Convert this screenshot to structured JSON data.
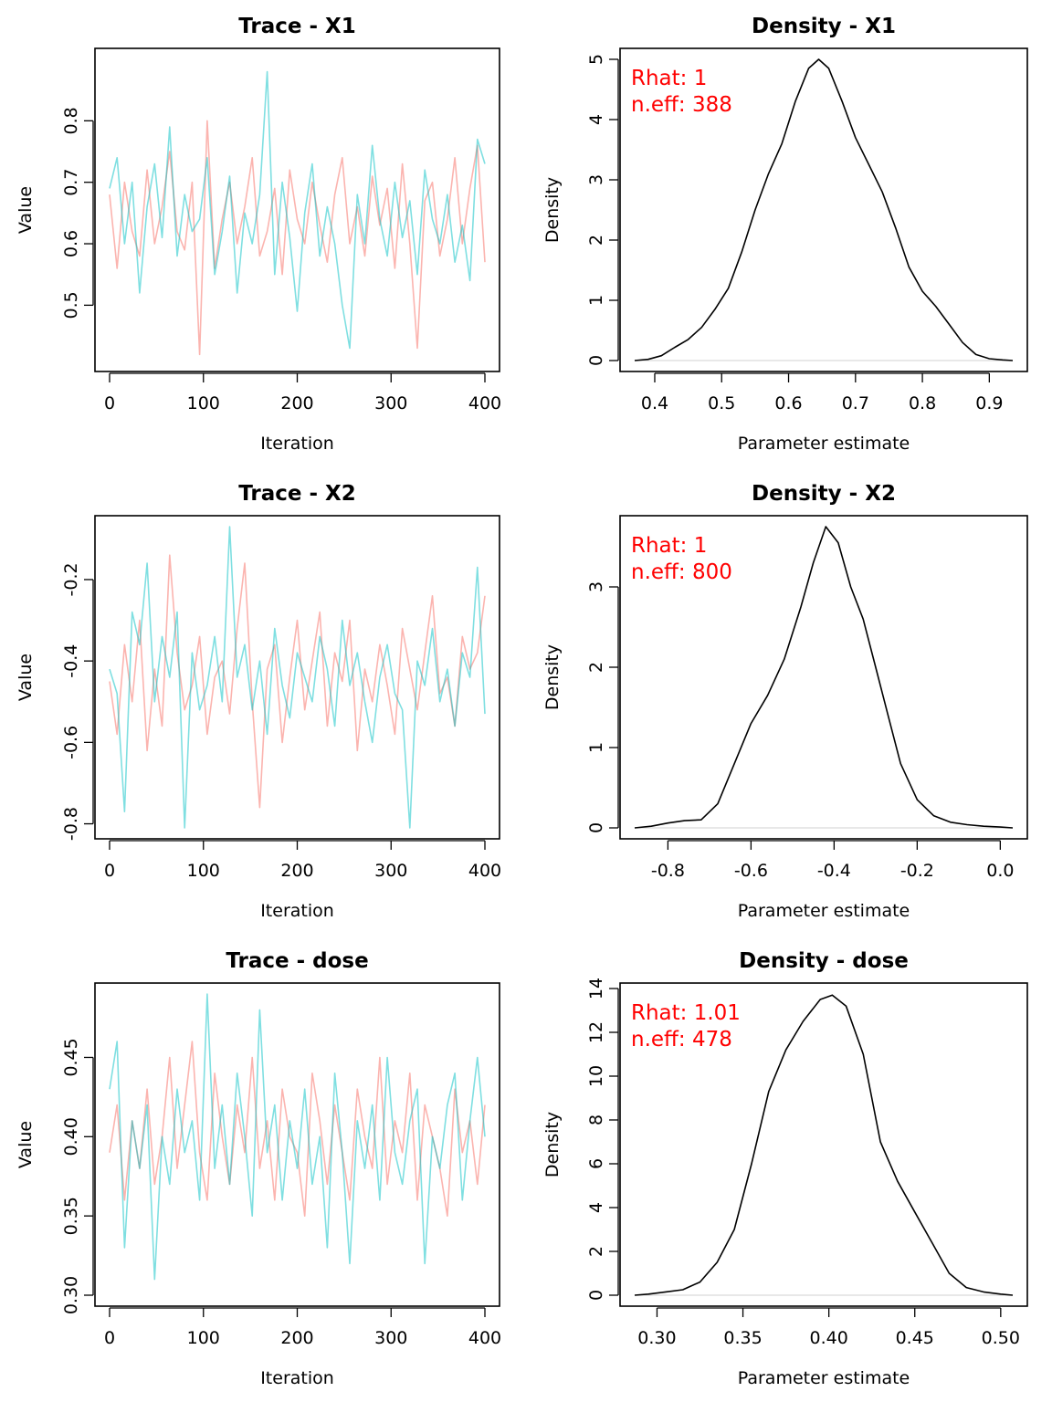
{
  "figure": {
    "panels": [
      {
        "trace_title": "Trace - X1",
        "density_title": "Density - X1",
        "rhat_text": "Rhat: 1",
        "neff_text": "n.eff: 388"
      },
      {
        "trace_title": "Trace - X2",
        "density_title": "Density - X2",
        "rhat_text": "Rhat: 1",
        "neff_text": "n.eff: 800"
      },
      {
        "trace_title": "Trace - dose",
        "density_title": "Density - dose",
        "rhat_text": "Rhat: 1.01",
        "neff_text": "n.eff: 478"
      }
    ]
  },
  "chart_data": [
    {
      "type": "line",
      "title": "Trace - X1",
      "xlabel": "Iteration",
      "ylabel": "Value",
      "xlim": [
        0,
        400
      ],
      "ylim": [
        0.41,
        0.9
      ],
      "xticks": [
        0,
        100,
        200,
        300,
        400
      ],
      "xtick_labels": [
        "0",
        "100",
        "200",
        "300",
        "400"
      ],
      "yticks": [
        0.5,
        0.6,
        0.7,
        0.8
      ],
      "ytick_labels": [
        "0.5",
        "0.6",
        "0.7",
        "0.8"
      ],
      "series_colors": [
        "#f8766d",
        "#00bfc4"
      ],
      "series": [
        {
          "x": [
            0,
            8,
            16,
            24,
            32,
            40,
            48,
            56,
            64,
            72,
            80,
            88,
            96,
            104,
            112,
            120,
            128,
            136,
            144,
            152,
            160,
            168,
            176,
            184,
            192,
            200,
            208,
            216,
            224,
            232,
            240,
            248,
            256,
            264,
            272,
            280,
            288,
            296,
            304,
            312,
            320,
            328,
            336,
            344,
            352,
            360,
            368,
            376,
            384,
            392,
            400
          ],
          "values": [
            0.68,
            0.56,
            0.7,
            0.62,
            0.58,
            0.72,
            0.6,
            0.66,
            0.75,
            0.62,
            0.59,
            0.7,
            0.42,
            0.8,
            0.56,
            0.64,
            0.7,
            0.6,
            0.66,
            0.74,
            0.58,
            0.62,
            0.69,
            0.55,
            0.72,
            0.64,
            0.6,
            0.7,
            0.63,
            0.57,
            0.68,
            0.74,
            0.6,
            0.66,
            0.58,
            0.71,
            0.63,
            0.69,
            0.56,
            0.73,
            0.6,
            0.43,
            0.67,
            0.7,
            0.58,
            0.64,
            0.74,
            0.6,
            0.69,
            0.76,
            0.57
          ]
        },
        {
          "x": [
            0,
            8,
            16,
            24,
            32,
            40,
            48,
            56,
            64,
            72,
            80,
            88,
            96,
            104,
            112,
            120,
            128,
            136,
            144,
            152,
            160,
            168,
            176,
            184,
            192,
            200,
            208,
            216,
            224,
            232,
            240,
            248,
            256,
            264,
            272,
            280,
            288,
            296,
            304,
            312,
            320,
            328,
            336,
            344,
            352,
            360,
            368,
            376,
            384,
            392,
            400
          ],
          "values": [
            0.69,
            0.74,
            0.6,
            0.7,
            0.52,
            0.66,
            0.73,
            0.61,
            0.79,
            0.58,
            0.68,
            0.62,
            0.64,
            0.74,
            0.55,
            0.62,
            0.71,
            0.52,
            0.65,
            0.6,
            0.68,
            0.88,
            0.55,
            0.7,
            0.61,
            0.49,
            0.65,
            0.73,
            0.58,
            0.66,
            0.6,
            0.5,
            0.43,
            0.68,
            0.6,
            0.76,
            0.64,
            0.58,
            0.7,
            0.61,
            0.67,
            0.55,
            0.72,
            0.64,
            0.6,
            0.68,
            0.57,
            0.63,
            0.54,
            0.77,
            0.73
          ]
        }
      ]
    },
    {
      "type": "line",
      "title": "Density - X1",
      "xlabel": "Parameter estimate",
      "ylabel": "Density",
      "xlim": [
        0.37,
        0.935
      ],
      "ylim": [
        0,
        5
      ],
      "xticks": [
        0.4,
        0.5,
        0.6,
        0.7,
        0.8,
        0.9
      ],
      "xtick_labels": [
        "0.4",
        "0.5",
        "0.6",
        "0.7",
        "0.8",
        "0.9"
      ],
      "yticks": [
        0,
        1,
        2,
        3,
        4,
        5
      ],
      "ytick_labels": [
        "0",
        "1",
        "2",
        "3",
        "4",
        "5"
      ],
      "series": [
        {
          "x": [
            0.37,
            0.39,
            0.41,
            0.43,
            0.45,
            0.47,
            0.49,
            0.51,
            0.53,
            0.55,
            0.57,
            0.59,
            0.61,
            0.63,
            0.645,
            0.66,
            0.68,
            0.7,
            0.72,
            0.74,
            0.76,
            0.78,
            0.8,
            0.82,
            0.84,
            0.86,
            0.88,
            0.9,
            0.92,
            0.935
          ],
          "values": [
            0.0,
            0.02,
            0.08,
            0.22,
            0.35,
            0.55,
            0.85,
            1.2,
            1.8,
            2.5,
            3.1,
            3.6,
            4.3,
            4.85,
            5.0,
            4.85,
            4.3,
            3.7,
            3.25,
            2.8,
            2.2,
            1.55,
            1.15,
            0.9,
            0.6,
            0.3,
            0.1,
            0.03,
            0.01,
            0.0
          ]
        }
      ]
    },
    {
      "type": "line",
      "title": "Trace - X2",
      "xlabel": "Iteration",
      "ylabel": "Value",
      "xlim": [
        0,
        400
      ],
      "ylim": [
        -0.81,
        -0.07
      ],
      "xticks": [
        0,
        100,
        200,
        300,
        400
      ],
      "xtick_labels": [
        "0",
        "100",
        "200",
        "300",
        "400"
      ],
      "yticks": [
        -0.8,
        -0.6,
        -0.4,
        -0.2
      ],
      "ytick_labels": [
        "-0.8",
        "-0.6",
        "-0.4",
        "-0.2"
      ],
      "series_colors": [
        "#f8766d",
        "#00bfc4"
      ],
      "series": [
        {
          "x": [
            0,
            8,
            16,
            24,
            32,
            40,
            48,
            56,
            64,
            72,
            80,
            88,
            96,
            104,
            112,
            120,
            128,
            136,
            144,
            152,
            160,
            168,
            176,
            184,
            192,
            200,
            208,
            216,
            224,
            232,
            240,
            248,
            256,
            264,
            272,
            280,
            288,
            296,
            304,
            312,
            320,
            328,
            336,
            344,
            352,
            360,
            368,
            376,
            384,
            392,
            400
          ],
          "values": [
            -0.45,
            -0.58,
            -0.36,
            -0.5,
            -0.3,
            -0.62,
            -0.42,
            -0.56,
            -0.14,
            -0.38,
            -0.52,
            -0.46,
            -0.34,
            -0.58,
            -0.44,
            -0.4,
            -0.53,
            -0.32,
            -0.16,
            -0.5,
            -0.76,
            -0.42,
            -0.36,
            -0.6,
            -0.44,
            -0.3,
            -0.52,
            -0.4,
            -0.28,
            -0.56,
            -0.38,
            -0.45,
            -0.3,
            -0.62,
            -0.42,
            -0.5,
            -0.36,
            -0.46,
            -0.58,
            -0.32,
            -0.42,
            -0.52,
            -0.38,
            -0.24,
            -0.48,
            -0.44,
            -0.56,
            -0.34,
            -0.42,
            -0.38,
            -0.24
          ]
        },
        {
          "x": [
            0,
            8,
            16,
            24,
            32,
            40,
            48,
            56,
            64,
            72,
            80,
            88,
            96,
            104,
            112,
            120,
            128,
            136,
            144,
            152,
            160,
            168,
            176,
            184,
            192,
            200,
            208,
            216,
            224,
            232,
            240,
            248,
            256,
            264,
            272,
            280,
            288,
            296,
            304,
            312,
            320,
            328,
            336,
            344,
            352,
            360,
            368,
            376,
            384,
            392,
            400
          ],
          "values": [
            -0.42,
            -0.48,
            -0.77,
            -0.28,
            -0.36,
            -0.16,
            -0.5,
            -0.34,
            -0.44,
            -0.28,
            -0.81,
            -0.38,
            -0.52,
            -0.46,
            -0.34,
            -0.5,
            -0.07,
            -0.44,
            -0.36,
            -0.52,
            -0.4,
            -0.58,
            -0.32,
            -0.46,
            -0.54,
            -0.38,
            -0.44,
            -0.5,
            -0.34,
            -0.42,
            -0.56,
            -0.3,
            -0.46,
            -0.38,
            -0.5,
            -0.6,
            -0.44,
            -0.36,
            -0.48,
            -0.52,
            -0.81,
            -0.4,
            -0.46,
            -0.32,
            -0.5,
            -0.42,
            -0.56,
            -0.38,
            -0.44,
            -0.17,
            -0.53
          ]
        }
      ]
    },
    {
      "type": "line",
      "title": "Density - X2",
      "xlabel": "Parameter estimate",
      "ylabel": "Density",
      "xlim": [
        -0.88,
        0.03
      ],
      "ylim": [
        0,
        3.75
      ],
      "xticks": [
        -0.8,
        -0.6,
        -0.4,
        -0.2,
        0.0
      ],
      "xtick_labels": [
        "-0.8",
        "-0.6",
        "-0.4",
        "-0.2",
        "0.0"
      ],
      "yticks": [
        0,
        1,
        2,
        3
      ],
      "ytick_labels": [
        "0",
        "1",
        "2",
        "3"
      ],
      "series": [
        {
          "x": [
            -0.88,
            -0.84,
            -0.8,
            -0.76,
            -0.72,
            -0.68,
            -0.64,
            -0.6,
            -0.56,
            -0.52,
            -0.48,
            -0.45,
            -0.42,
            -0.39,
            -0.36,
            -0.33,
            -0.3,
            -0.27,
            -0.24,
            -0.2,
            -0.16,
            -0.12,
            -0.08,
            -0.04,
            0.0,
            0.03
          ],
          "values": [
            0.0,
            0.02,
            0.06,
            0.09,
            0.1,
            0.3,
            0.8,
            1.3,
            1.65,
            2.1,
            2.75,
            3.3,
            3.75,
            3.55,
            3.0,
            2.6,
            2.0,
            1.4,
            0.8,
            0.35,
            0.15,
            0.07,
            0.04,
            0.02,
            0.01,
            0.0
          ]
        }
      ]
    },
    {
      "type": "line",
      "title": "Trace - dose",
      "xlabel": "Iteration",
      "ylabel": "Value",
      "xlim": [
        0,
        400
      ],
      "ylim": [
        0.3,
        0.49
      ],
      "xticks": [
        0,
        100,
        200,
        300,
        400
      ],
      "xtick_labels": [
        "0",
        "100",
        "200",
        "300",
        "400"
      ],
      "yticks": [
        0.3,
        0.35,
        0.4,
        0.45
      ],
      "ytick_labels": [
        "0.30",
        "0.35",
        "0.40",
        "0.45"
      ],
      "series_colors": [
        "#f8766d",
        "#00bfc4"
      ],
      "series": [
        {
          "x": [
            0,
            8,
            16,
            24,
            32,
            40,
            48,
            56,
            64,
            72,
            80,
            88,
            96,
            104,
            112,
            120,
            128,
            136,
            144,
            152,
            160,
            168,
            176,
            184,
            192,
            200,
            208,
            216,
            224,
            232,
            240,
            248,
            256,
            264,
            272,
            280,
            288,
            296,
            304,
            312,
            320,
            328,
            336,
            344,
            352,
            360,
            368,
            376,
            384,
            392,
            400
          ],
          "values": [
            0.39,
            0.42,
            0.36,
            0.41,
            0.38,
            0.43,
            0.37,
            0.4,
            0.45,
            0.38,
            0.42,
            0.46,
            0.39,
            0.36,
            0.44,
            0.4,
            0.37,
            0.42,
            0.39,
            0.45,
            0.38,
            0.41,
            0.36,
            0.43,
            0.4,
            0.39,
            0.35,
            0.44,
            0.41,
            0.37,
            0.42,
            0.39,
            0.36,
            0.43,
            0.4,
            0.38,
            0.45,
            0.37,
            0.41,
            0.39,
            0.44,
            0.36,
            0.42,
            0.4,
            0.38,
            0.35,
            0.43,
            0.39,
            0.41,
            0.37,
            0.42
          ]
        },
        {
          "x": [
            0,
            8,
            16,
            24,
            32,
            40,
            48,
            56,
            64,
            72,
            80,
            88,
            96,
            104,
            112,
            120,
            128,
            136,
            144,
            152,
            160,
            168,
            176,
            184,
            192,
            200,
            208,
            216,
            224,
            232,
            240,
            248,
            256,
            264,
            272,
            280,
            288,
            296,
            304,
            312,
            320,
            328,
            336,
            344,
            352,
            360,
            368,
            376,
            384,
            392,
            400
          ],
          "values": [
            0.43,
            0.46,
            0.33,
            0.41,
            0.38,
            0.42,
            0.31,
            0.4,
            0.37,
            0.43,
            0.39,
            0.41,
            0.36,
            0.49,
            0.38,
            0.42,
            0.37,
            0.44,
            0.4,
            0.35,
            0.48,
            0.39,
            0.42,
            0.36,
            0.41,
            0.38,
            0.43,
            0.37,
            0.4,
            0.33,
            0.44,
            0.39,
            0.32,
            0.41,
            0.38,
            0.42,
            0.36,
            0.45,
            0.39,
            0.37,
            0.41,
            0.43,
            0.32,
            0.4,
            0.38,
            0.42,
            0.44,
            0.36,
            0.41,
            0.45,
            0.4
          ]
        }
      ]
    },
    {
      "type": "line",
      "title": "Density - dose",
      "xlabel": "Parameter estimate",
      "ylabel": "Density",
      "xlim": [
        0.287,
        0.507
      ],
      "ylim": [
        0,
        13.75
      ],
      "xticks": [
        0.3,
        0.35,
        0.4,
        0.45,
        0.5
      ],
      "xtick_labels": [
        "0.30",
        "0.35",
        "0.40",
        "0.45",
        "0.50"
      ],
      "yticks": [
        0,
        2,
        4,
        6,
        8,
        10,
        12,
        14
      ],
      "ytick_labels": [
        "0",
        "2",
        "4",
        "6",
        "8",
        "10",
        "12",
        "14"
      ],
      "series": [
        {
          "x": [
            0.287,
            0.295,
            0.305,
            0.315,
            0.325,
            0.335,
            0.345,
            0.355,
            0.365,
            0.375,
            0.385,
            0.395,
            0.402,
            0.41,
            0.42,
            0.43,
            0.44,
            0.45,
            0.46,
            0.47,
            0.48,
            0.49,
            0.5,
            0.507
          ],
          "values": [
            0.0,
            0.05,
            0.15,
            0.25,
            0.6,
            1.5,
            3.0,
            6.0,
            9.3,
            11.2,
            12.5,
            13.5,
            13.7,
            13.2,
            11.0,
            7.0,
            5.2,
            3.8,
            2.4,
            1.0,
            0.35,
            0.15,
            0.05,
            0.0
          ]
        }
      ]
    }
  ]
}
